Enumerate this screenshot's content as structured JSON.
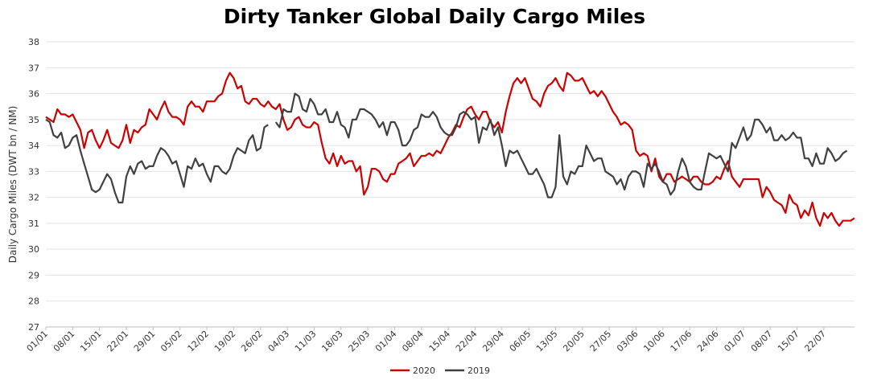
{
  "chart_data": {
    "type": "line",
    "title": "Dirty Tanker Global Daily Cargo Miles",
    "ylabel": "Daily Cargo Miles (DWT bn / NM)",
    "xlabel": "",
    "ylim": [
      27,
      38
    ],
    "yticks": [
      "27",
      "28",
      "29",
      "30",
      "31",
      "32",
      "33",
      "34",
      "35",
      "36",
      "37",
      "38"
    ],
    "x_start": "01/01",
    "x_end": "29/07",
    "xticks": [
      "01/01",
      "08/01",
      "15/01",
      "22/01",
      "29/01",
      "05/02",
      "12/02",
      "19/02",
      "26/02",
      "04/03",
      "11/03",
      "18/03",
      "25/03",
      "01/04",
      "08/04",
      "15/04",
      "22/04",
      "29/04",
      "06/05",
      "13/05",
      "20/05",
      "27/05",
      "03/06",
      "10/06",
      "17/06",
      "24/06",
      "01/07",
      "08/07",
      "15/07",
      "22/07"
    ],
    "grid": true,
    "legend": "bottom",
    "series": [
      {
        "name": "2020",
        "color": "#cc0000",
        "values": [
          35.1,
          35.0,
          34.9,
          35.4,
          35.2,
          35.2,
          35.1,
          35.2,
          34.9,
          34.6,
          33.9,
          34.5,
          34.6,
          34.2,
          33.9,
          34.2,
          34.6,
          34.1,
          34.0,
          33.9,
          34.2,
          34.8,
          34.1,
          34.6,
          34.5,
          34.7,
          34.8,
          35.4,
          35.2,
          35.0,
          35.4,
          35.7,
          35.3,
          35.1,
          35.1,
          35.0,
          34.8,
          35.5,
          35.7,
          35.5,
          35.5,
          35.3,
          35.7,
          35.7,
          35.7,
          35.9,
          36.0,
          36.5,
          36.8,
          36.6,
          36.2,
          36.3,
          35.7,
          35.6,
          35.8,
          35.8,
          35.6,
          35.5,
          35.7,
          35.5,
          35.4,
          35.6,
          35.0,
          34.6,
          34.7,
          35.0,
          35.1,
          34.8,
          34.7,
          34.7,
          34.9,
          34.8,
          34.1,
          33.5,
          33.3,
          33.7,
          33.2,
          33.6,
          33.3,
          33.4,
          33.4,
          33.0,
          33.2,
          32.1,
          32.4,
          33.1,
          33.1,
          33.0,
          32.7,
          32.6,
          32.9,
          32.9,
          33.3,
          33.4,
          33.5,
          33.7,
          33.2,
          33.4,
          33.6,
          33.6,
          33.7,
          33.6,
          33.8,
          33.7,
          34.0,
          34.3,
          34.5,
          34.8,
          34.7,
          35.1,
          35.4,
          35.5,
          35.2,
          35.0,
          35.3,
          35.3,
          34.9,
          34.7,
          34.9,
          34.5,
          35.3,
          35.9,
          36.4,
          36.6,
          36.4,
          36.6,
          36.2,
          35.8,
          35.7,
          35.5,
          36.0,
          36.3,
          36.4,
          36.6,
          36.3,
          36.1,
          36.8,
          36.7,
          36.5,
          36.5,
          36.6,
          36.3,
          36.0,
          36.1,
          35.9,
          36.1,
          35.9,
          35.6,
          35.3,
          35.1,
          34.8,
          34.9,
          34.8,
          34.6,
          33.8,
          33.6,
          33.7,
          33.6,
          33.0,
          33.5,
          32.8,
          32.6,
          32.9,
          32.9,
          32.6,
          32.7,
          32.8,
          32.7,
          32.6,
          32.8,
          32.8,
          32.6,
          32.5,
          32.5,
          32.6,
          32.8,
          32.7,
          33.1,
          33.4,
          32.8,
          32.6,
          32.4,
          32.7,
          32.7,
          32.7,
          32.7,
          32.7,
          32.0,
          32.4,
          32.2,
          31.9,
          31.8,
          31.7,
          31.4,
          32.1,
          31.8,
          31.7,
          31.2,
          31.5,
          31.3,
          31.8,
          31.2,
          30.9,
          31.4,
          31.2,
          31.4,
          31.1,
          30.9,
          31.1,
          31.1,
          31.1,
          31.2
        ]
      },
      {
        "name": "2019",
        "color": "#404040",
        "values": [
          35.0,
          34.9,
          34.4,
          34.3,
          34.5,
          33.9,
          34.0,
          34.3,
          34.4,
          33.8,
          33.3,
          32.8,
          32.3,
          32.2,
          32.3,
          32.6,
          32.9,
          32.7,
          32.2,
          31.8,
          31.8,
          32.8,
          33.2,
          32.9,
          33.3,
          33.4,
          33.1,
          33.2,
          33.2,
          33.6,
          33.9,
          33.8,
          33.6,
          33.3,
          33.4,
          32.9,
          32.4,
          33.2,
          33.1,
          33.5,
          33.2,
          33.3,
          32.9,
          32.6,
          33.2,
          33.2,
          33.0,
          32.9,
          33.1,
          33.6,
          33.9,
          33.8,
          33.7,
          34.2,
          34.4,
          33.8,
          33.9,
          34.7,
          34.8,
          null,
          34.9,
          34.7,
          35.4,
          35.3,
          35.3,
          36.0,
          35.9,
          35.4,
          35.3,
          35.8,
          35.6,
          35.2,
          35.2,
          35.4,
          34.9,
          34.9,
          35.3,
          34.8,
          34.7,
          34.3,
          35.0,
          35.0,
          35.4,
          35.4,
          35.3,
          35.2,
          35.0,
          34.7,
          34.9,
          34.4,
          34.9,
          34.9,
          34.6,
          34.0,
          34.0,
          34.2,
          34.6,
          34.7,
          35.2,
          35.1,
          35.1,
          35.3,
          35.1,
          34.7,
          34.5,
          34.4,
          34.4,
          34.7,
          35.2,
          35.3,
          35.2,
          35.0,
          35.1,
          34.1,
          34.7,
          34.6,
          35.0,
          34.4,
          34.7,
          34.0,
          33.2,
          33.8,
          33.7,
          33.8,
          33.5,
          33.2,
          32.9,
          32.9,
          33.1,
          32.8,
          32.5,
          32.0,
          32.0,
          32.4,
          34.4,
          32.8,
          32.5,
          33.0,
          32.9,
          33.2,
          33.2,
          34.0,
          33.7,
          33.4,
          33.5,
          33.5,
          33.0,
          32.9,
          32.8,
          32.5,
          32.7,
          32.3,
          32.8,
          33.0,
          33.0,
          32.9,
          32.4,
          33.3,
          33.1,
          33.3,
          33.0,
          32.6,
          32.5,
          32.1,
          32.3,
          33.0,
          33.5,
          33.2,
          32.6,
          32.4,
          32.3,
          32.3,
          33.0,
          33.7,
          33.6,
          33.5,
          33.6,
          33.3,
          33.0,
          34.1,
          33.9,
          34.3,
          34.7,
          34.2,
          34.4,
          35.0,
          35.0,
          34.8,
          34.5,
          34.7,
          34.2,
          34.2,
          34.4,
          34.2,
          34.3,
          34.5,
          34.3,
          34.3,
          33.5,
          33.5,
          33.2,
          33.7,
          33.3,
          33.3,
          33.9,
          33.7,
          33.4,
          33.5,
          33.7,
          33.8
        ]
      }
    ]
  }
}
